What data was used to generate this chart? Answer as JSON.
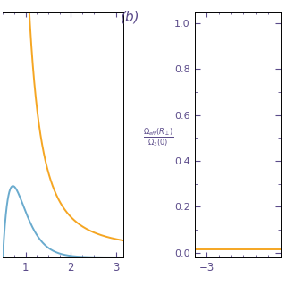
{
  "orange_color": "#F5A623",
  "blue_color": "#6AABCE",
  "left_xticks": [
    1,
    2,
    3
  ],
  "right_xticks": [
    -3
  ],
  "right_yticks": [
    0.0,
    0.2,
    0.4,
    0.6,
    0.8,
    1.0
  ],
  "label_b": "(b)",
  "tick_color": "#5B4B8A",
  "label_color": "#5B4B8A",
  "background": "#ffffff",
  "ylabel_num": "$\\Omega_{eff}(R_\\perp)$",
  "ylabel_den": "$\\Omega_3(0)$"
}
